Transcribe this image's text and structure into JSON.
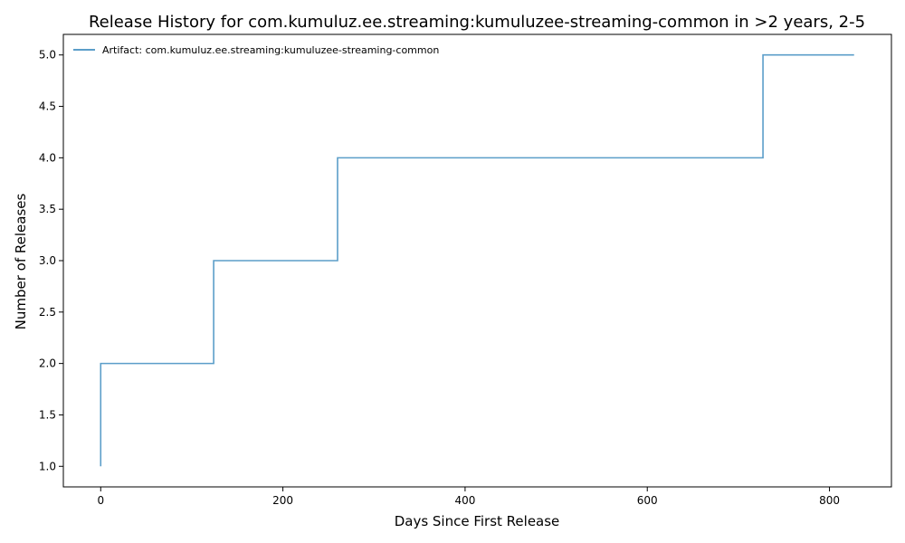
{
  "chart_data": {
    "type": "line",
    "step": true,
    "title": "Release History for com.kumuluz.ee.streaming:kumuluzee-streaming-common in >2 years, 2-5",
    "xlabel": "Days Since First Release",
    "ylabel": "Number of Releases",
    "xlim": [
      -41,
      868
    ],
    "ylim": [
      0.8,
      5.2
    ],
    "xticks": [
      0,
      200,
      400,
      600,
      800
    ],
    "yticks": [
      1.0,
      1.5,
      2.0,
      2.5,
      3.0,
      3.5,
      4.0,
      4.5,
      5.0
    ],
    "xtick_labels": [
      "0",
      "200",
      "400",
      "600",
      "800"
    ],
    "ytick_labels": [
      "1.0",
      "1.5",
      "2.0",
      "2.5",
      "3.0",
      "3.5",
      "4.0",
      "4.5",
      "5.0"
    ],
    "grid": false,
    "legend_position": "top-left",
    "series": [
      {
        "name": "Artifact: com.kumuluz.ee.streaming:kumuluzee-streaming-common",
        "color": "#5b9ec9",
        "x": [
          0,
          0,
          124,
          260,
          727,
          827
        ],
        "y": [
          1,
          2,
          3,
          4,
          5,
          5
        ]
      }
    ]
  }
}
